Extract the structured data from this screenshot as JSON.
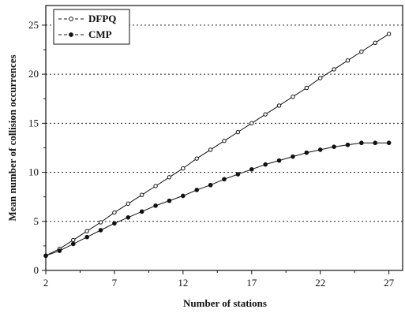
{
  "chart_data": {
    "type": "line",
    "title": "",
    "xlabel": "Number of stations",
    "ylabel": "Mean number of collision occurrences",
    "xlim": [
      2,
      28
    ],
    "ylim": [
      0,
      27
    ],
    "xticks": [
      2,
      7,
      12,
      17,
      22,
      27
    ],
    "yticks": [
      0,
      5,
      10,
      15,
      20,
      25
    ],
    "grid": "horizontal dotted",
    "legend_position": "top-left",
    "x": [
      2,
      3,
      4,
      5,
      6,
      7,
      8,
      9,
      10,
      11,
      12,
      13,
      14,
      15,
      16,
      17,
      18,
      19,
      20,
      21,
      22,
      23,
      24,
      25,
      26,
      27
    ],
    "series": [
      {
        "name": "DFPQ",
        "marker": "open-circle",
        "color": "#111111",
        "values": [
          1.5,
          2.2,
          3.1,
          4.0,
          4.9,
          5.9,
          6.8,
          7.7,
          8.6,
          9.5,
          10.4,
          11.4,
          12.3,
          13.2,
          14.1,
          15.0,
          15.9,
          16.8,
          17.7,
          18.6,
          19.6,
          20.5,
          21.4,
          22.3,
          23.2,
          24.1
        ]
      },
      {
        "name": "CMP",
        "marker": "filled-circle",
        "color": "#111111",
        "values": [
          1.5,
          2.0,
          2.7,
          3.4,
          4.1,
          4.8,
          5.4,
          6.0,
          6.6,
          7.1,
          7.6,
          8.2,
          8.7,
          9.3,
          9.8,
          10.3,
          10.8,
          11.2,
          11.6,
          12.0,
          12.3,
          12.6,
          12.8,
          13.0,
          13.0,
          13.0
        ]
      }
    ]
  }
}
